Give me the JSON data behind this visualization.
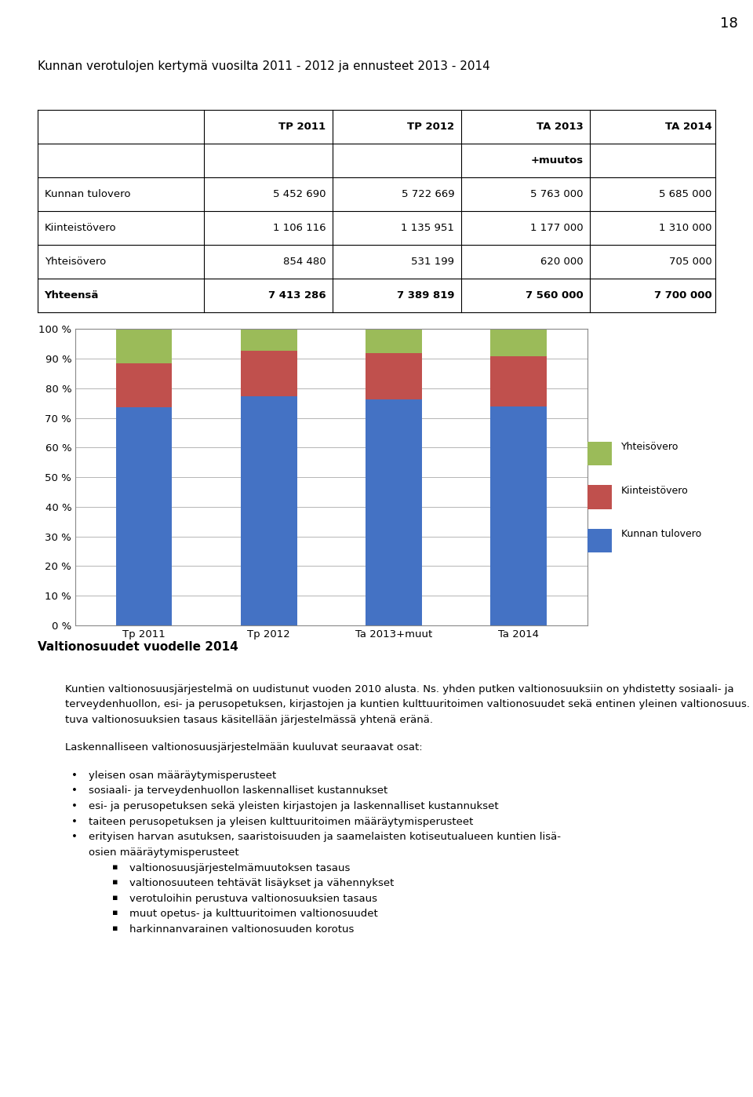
{
  "page_number": "18",
  "main_title": "Kunnan verotulojen kertymä vuosilta 2011 - 2012 ja ennusteet 2013 - 2014",
  "col_headers_row1": [
    "",
    "TP 2011",
    "TP 2012",
    "TA 2013",
    "TA 2014"
  ],
  "col_headers_row2": [
    "",
    "",
    "",
    "+muutos",
    ""
  ],
  "table_rows": [
    [
      "Kunnan tulovero",
      "5 452 690",
      "5 722 669",
      "5 763 000",
      "5 685 000"
    ],
    [
      "Kiinteistövero",
      "1 106 116",
      "1 135 951",
      "1 177 000",
      "1 310 000"
    ],
    [
      "Yhteisövero",
      "854 480",
      "531 199",
      "620 000",
      "705 000"
    ],
    [
      "Yhteensä",
      "7 413 286",
      "7 389 819",
      "7 560 000",
      "7 700 000"
    ]
  ],
  "bar_categories": [
    "Tp 2011",
    "Tp 2012",
    "Ta 2013+muut",
    "Ta 2014"
  ],
  "kunnan_tulovero": [
    5452690,
    5722669,
    5763000,
    5685000
  ],
  "kiinteistovero": [
    1106116,
    1135951,
    1177000,
    1310000
  ],
  "yhteisovero": [
    854480,
    531199,
    620000,
    705000
  ],
  "totals": [
    7413286,
    7389819,
    7560000,
    7700000
  ],
  "color_kunnan": "#4472C4",
  "color_kiint": "#C0504D",
  "color_yhteis": "#9BBB59",
  "yticks": [
    0,
    10,
    20,
    30,
    40,
    50,
    60,
    70,
    80,
    90,
    100
  ],
  "ytick_labels": [
    "0 %",
    "10 %",
    "20 %",
    "30 %",
    "40 %",
    "50 %",
    "60 %",
    "70 %",
    "80 %",
    "90 %",
    "100 %"
  ],
  "section_title": "Valtionosuudet vuodelle 2014",
  "para1_lines": [
    "Kuntien valtionosuusjärjestelmä on uudistunut vuoden 2010 alusta. Ns. yhden putken valtionosuuksiin on yhdistetty sosiaali- ja terveydenhuollon, esi- ja perusopetuksen, kirjastojen ja",
    "kuntien kulttuuritoimen valtionosuudet sekä entinen yleinen valtionosuus. Verotuloihin perus-",
    "tuva valtionosuuksien tasaus käsitellään järjestelmässä yhtenä eränä."
  ],
  "para2": "Laskennalliseen valtionosuusjärjestelmään kuuluvat seuraavat osat:",
  "bullets_main": [
    "yleisen osan määräytymisperusteet",
    "sosiaali- ja terveydenhuollon laskennalliset kustannukset",
    "esi- ja perusopetuksen sekä yleisten kirjastojen ja laskennalliset kustannukset",
    "taiteen perusopetuksen ja yleisen kulttuuritoimen määräytymisperusteet",
    "erityisen harvan asutuksen, saaristoisuuden ja saamelaisten kotiseutualueen kuntien lisä-\nosien määräytymisperusteet"
  ],
  "bullets_sub": [
    "valtionosuusjärjestelmämuutoksen tasaus",
    "valtionosuuteen tehtävät lisäykset ja vähennykset",
    "verotuloihin perustuva valtionosuuksien tasaus",
    "muut opetus- ja kulttuuritoimen valtionosuudet",
    "harkinnanvarainen valtionosuuden korotus"
  ]
}
